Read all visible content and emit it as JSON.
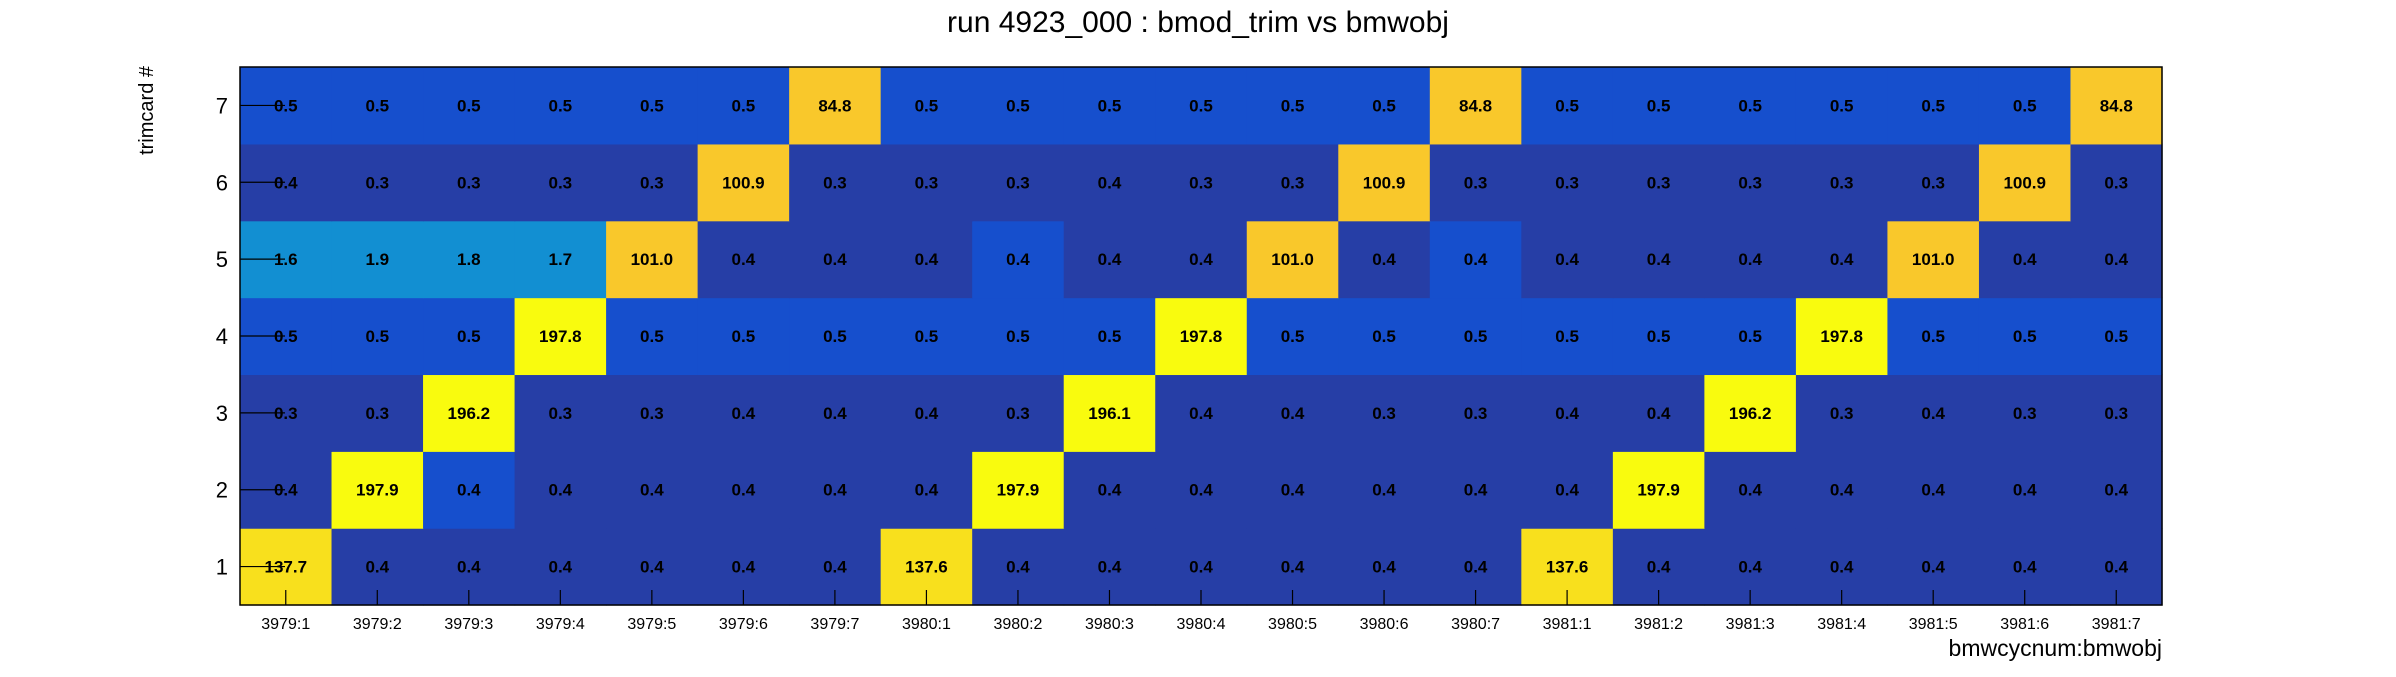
{
  "chart_data": {
    "type": "heatmap",
    "title": "run 4923_000 : bmod_trim vs bmwobj",
    "xlabel": "bmwcycnum:bmwobj",
    "ylabel": "trimcard #",
    "x_categories": [
      "3979:1",
      "3979:2",
      "3979:3",
      "3979:4",
      "3979:5",
      "3979:6",
      "3979:7",
      "3980:1",
      "3980:2",
      "3980:3",
      "3980:4",
      "3980:5",
      "3980:6",
      "3980:7",
      "3981:1",
      "3981:2",
      "3981:3",
      "3981:4",
      "3981:5",
      "3981:6",
      "3981:7"
    ],
    "y_categories": [
      "1",
      "2",
      "3",
      "4",
      "5",
      "6",
      "7"
    ],
    "values": [
      [
        "137.7",
        "0.4",
        "0.4",
        "0.4",
        "0.4",
        "0.4",
        "0.4",
        "137.6",
        "0.4",
        "0.4",
        "0.4",
        "0.4",
        "0.4",
        "0.4",
        "137.6",
        "0.4",
        "0.4",
        "0.4",
        "0.4",
        "0.4",
        "0.4"
      ],
      [
        "0.4",
        "197.9",
        "0.4",
        "0.4",
        "0.4",
        "0.4",
        "0.4",
        "0.4",
        "197.9",
        "0.4",
        "0.4",
        "0.4",
        "0.4",
        "0.4",
        "0.4",
        "197.9",
        "0.4",
        "0.4",
        "0.4",
        "0.4",
        "0.4"
      ],
      [
        "0.3",
        "0.3",
        "196.2",
        "0.3",
        "0.3",
        "0.4",
        "0.4",
        "0.4",
        "0.3",
        "196.1",
        "0.4",
        "0.4",
        "0.3",
        "0.3",
        "0.4",
        "0.4",
        "196.2",
        "0.3",
        "0.4",
        "0.3",
        "0.3"
      ],
      [
        "0.5",
        "0.5",
        "0.5",
        "197.8",
        "0.5",
        "0.5",
        "0.5",
        "0.5",
        "0.5",
        "0.5",
        "197.8",
        "0.5",
        "0.5",
        "0.5",
        "0.5",
        "0.5",
        "0.5",
        "197.8",
        "0.5",
        "0.5",
        "0.5"
      ],
      [
        "1.6",
        "1.9",
        "1.8",
        "1.7",
        "101.0",
        "0.4",
        "0.4",
        "0.4",
        "0.4",
        "0.4",
        "0.4",
        "101.0",
        "0.4",
        "0.4",
        "0.4",
        "0.4",
        "0.4",
        "0.4",
        "101.0",
        "0.4",
        "0.4"
      ],
      [
        "0.4",
        "0.3",
        "0.3",
        "0.3",
        "0.3",
        "100.9",
        "0.3",
        "0.3",
        "0.3",
        "0.4",
        "0.3",
        "0.3",
        "100.9",
        "0.3",
        "0.3",
        "0.3",
        "0.3",
        "0.3",
        "0.3",
        "100.9",
        "0.3"
      ],
      [
        "0.5",
        "0.5",
        "0.5",
        "0.5",
        "0.5",
        "0.5",
        "84.8",
        "0.5",
        "0.5",
        "0.5",
        "0.5",
        "0.5",
        "0.5",
        "84.8",
        "0.5",
        "0.5",
        "0.5",
        "0.5",
        "0.5",
        "0.5",
        "84.8"
      ]
    ],
    "colors": {
      "1.6": "#128fd2",
      "1.7": "#128fd2",
      "1.8": "#128fd2",
      "1.9": "#128fd2",
      "0.5": "#164fcd",
      "0.4": "#263ea6",
      "0.3": "#263ea6",
      "84.8": "#f9c82b",
      "100.9": "#f9c82b",
      "101.0": "#f9c82b",
      "137.6": "#f8e01d",
      "137.7": "#f8e01d",
      "196.1": "#f9fb0e",
      "196.2": "#f9fb0e",
      "197.8": "#f9fb0e",
      "197.9": "#f9fb0e"
    },
    "row_colors_overrides": {
      "1": {
        "0.4": "#263ea6"
      },
      "2": {
        "0.4": "#263ea6"
      },
      "3": {
        "0.4": "#263ea6",
        "0.3": "#263ea6"
      },
      "4": {
        "0.5": "#164fcd"
      },
      "5": {
        "0.4": "#263ea6"
      },
      "6": {
        "0.4": "#263ea6",
        "0.3": "#263ea6"
      },
      "7": {
        "0.5": "#164fcd"
      }
    },
    "cell_overrides": [
      {
        "row": "2",
        "col": "3979:3",
        "color": "#164fcd"
      },
      {
        "row": "5",
        "col": "3980:2",
        "color": "#164fcd"
      },
      {
        "row": "5",
        "col": "3980:7",
        "color": "#164fcd"
      }
    ],
    "grid": false,
    "legend": "none"
  }
}
